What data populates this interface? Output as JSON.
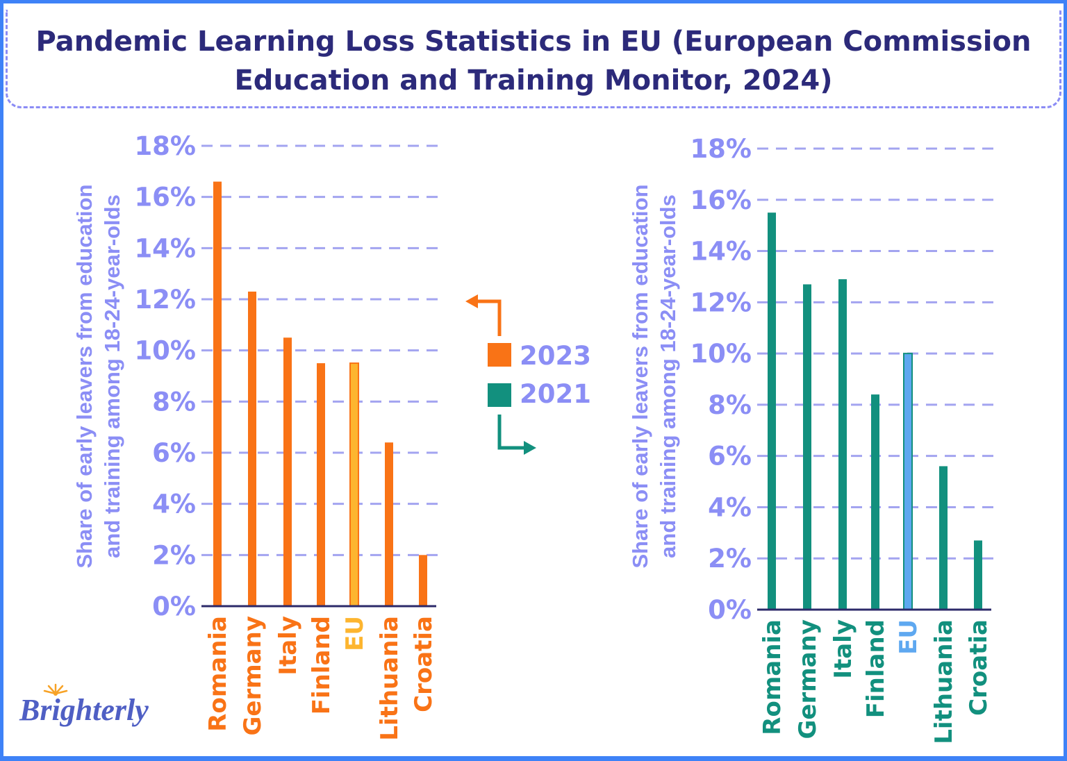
{
  "title": "Pandemic Learning Loss Statistics in EU (European Commission Education and Training Monitor, 2024)",
  "logo": "Brighterly",
  "colors": {
    "orange": "#f97316",
    "teal": "#12907e",
    "eu_2023": "#fdb52f",
    "eu_2021": "#5ea8f0",
    "axis_text": "#8b8ef5",
    "grid": "#a3a4f0",
    "title": "#2c2a7a"
  },
  "legend": [
    {
      "label": "2023",
      "color": "#f97316",
      "arrow": "left"
    },
    {
      "label": "2021",
      "color": "#12907e",
      "arrow": "right"
    }
  ],
  "chart_data": [
    {
      "type": "bar",
      "series": [
        {
          "name": "2023",
          "values": [
            16.6,
            12.3,
            10.5,
            9.5,
            9.5,
            6.4,
            2.0
          ]
        }
      ],
      "categories": [
        "Romania",
        "Germany",
        "Italy",
        "Finland",
        "EU",
        "Lithuania",
        "Croatia"
      ],
      "ylabel_lines": [
        "Share of early leavers from education",
        "and training among 18-24-year-olds"
      ],
      "yticks": [
        "0%",
        "2%",
        "4%",
        "6%",
        "8%",
        "10%",
        "12%",
        "14%",
        "16%",
        "18%"
      ],
      "ylim": [
        0,
        18
      ],
      "grid": true,
      "highlight": "EU"
    },
    {
      "type": "bar",
      "series": [
        {
          "name": "2021",
          "values": [
            15.5,
            12.7,
            12.9,
            8.4,
            10.0,
            5.6,
            2.7
          ]
        }
      ],
      "categories": [
        "Romania",
        "Germany",
        "Italy",
        "Finland",
        "EU",
        "Lithuania",
        "Croatia"
      ],
      "ylabel_lines": [
        "Share of early leavers from education",
        "and training among 18-24-year-olds"
      ],
      "yticks": [
        "0%",
        "2%",
        "4%",
        "6%",
        "8%",
        "10%",
        "12%",
        "14%",
        "16%",
        "18%"
      ],
      "ylim": [
        0,
        18
      ],
      "grid": true,
      "highlight": "EU"
    }
  ]
}
